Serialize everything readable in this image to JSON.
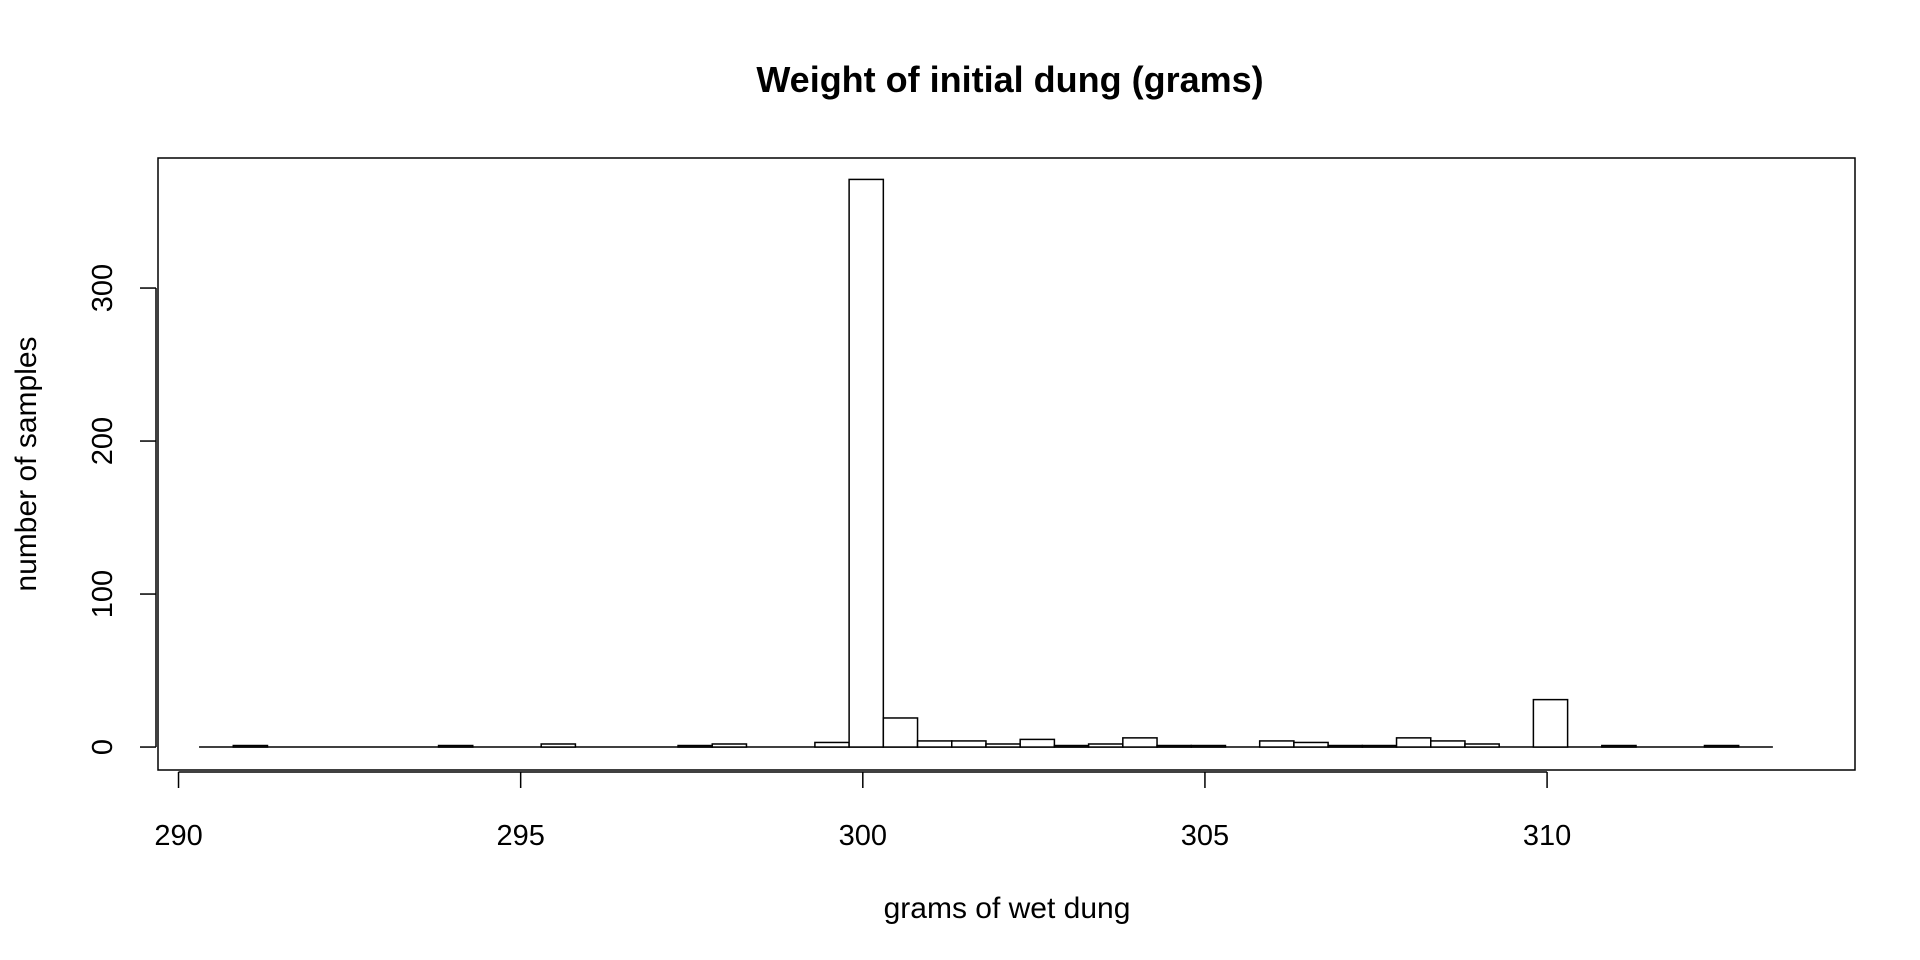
{
  "chart_data": {
    "type": "bar",
    "title": "Weight of initial dung (grams)",
    "xlabel": "grams of wet dung",
    "ylabel": "number of samples",
    "xlim": [
      289.7,
      314.5
    ],
    "ylim": [
      -15,
      385
    ],
    "x_ticks": [
      290,
      295,
      300,
      305,
      310
    ],
    "y_ticks": [
      0,
      100,
      200,
      300
    ],
    "x_tick_labels": [
      "290",
      "295",
      "300",
      "305",
      "310"
    ],
    "y_tick_labels": [
      "0",
      "100",
      "200",
      "300"
    ],
    "bin_width": 0.5,
    "bin_range": [
      290.3,
      313.3
    ],
    "bins": [
      {
        "start": 290.8,
        "end": 291.3,
        "count": 1
      },
      {
        "start": 293.8,
        "end": 294.3,
        "count": 1
      },
      {
        "start": 295.3,
        "end": 295.8,
        "count": 2
      },
      {
        "start": 297.3,
        "end": 297.8,
        "count": 1
      },
      {
        "start": 297.8,
        "end": 298.3,
        "count": 2
      },
      {
        "start": 299.3,
        "end": 299.8,
        "count": 3
      },
      {
        "start": 299.8,
        "end": 300.3,
        "count": 371
      },
      {
        "start": 300.3,
        "end": 300.8,
        "count": 19
      },
      {
        "start": 300.8,
        "end": 301.3,
        "count": 4
      },
      {
        "start": 301.3,
        "end": 301.8,
        "count": 4
      },
      {
        "start": 301.8,
        "end": 302.3,
        "count": 2
      },
      {
        "start": 302.3,
        "end": 302.8,
        "count": 5
      },
      {
        "start": 302.8,
        "end": 303.3,
        "count": 1
      },
      {
        "start": 303.3,
        "end": 303.8,
        "count": 2
      },
      {
        "start": 303.8,
        "end": 304.3,
        "count": 6
      },
      {
        "start": 304.3,
        "end": 304.8,
        "count": 1
      },
      {
        "start": 304.8,
        "end": 305.3,
        "count": 1
      },
      {
        "start": 305.8,
        "end": 306.3,
        "count": 4
      },
      {
        "start": 306.3,
        "end": 306.8,
        "count": 3
      },
      {
        "start": 306.8,
        "end": 307.3,
        "count": 1
      },
      {
        "start": 307.3,
        "end": 307.8,
        "count": 1
      },
      {
        "start": 307.8,
        "end": 308.3,
        "count": 6
      },
      {
        "start": 308.3,
        "end": 308.8,
        "count": 4
      },
      {
        "start": 308.8,
        "end": 309.3,
        "count": 2
      },
      {
        "start": 309.8,
        "end": 310.3,
        "count": 31
      },
      {
        "start": 310.8,
        "end": 311.3,
        "count": 1
      },
      {
        "start": 312.3,
        "end": 312.8,
        "count": 1
      }
    ],
    "grid": false,
    "colors": {
      "bar_fill": "#ffffff",
      "stroke": "#000000"
    }
  }
}
